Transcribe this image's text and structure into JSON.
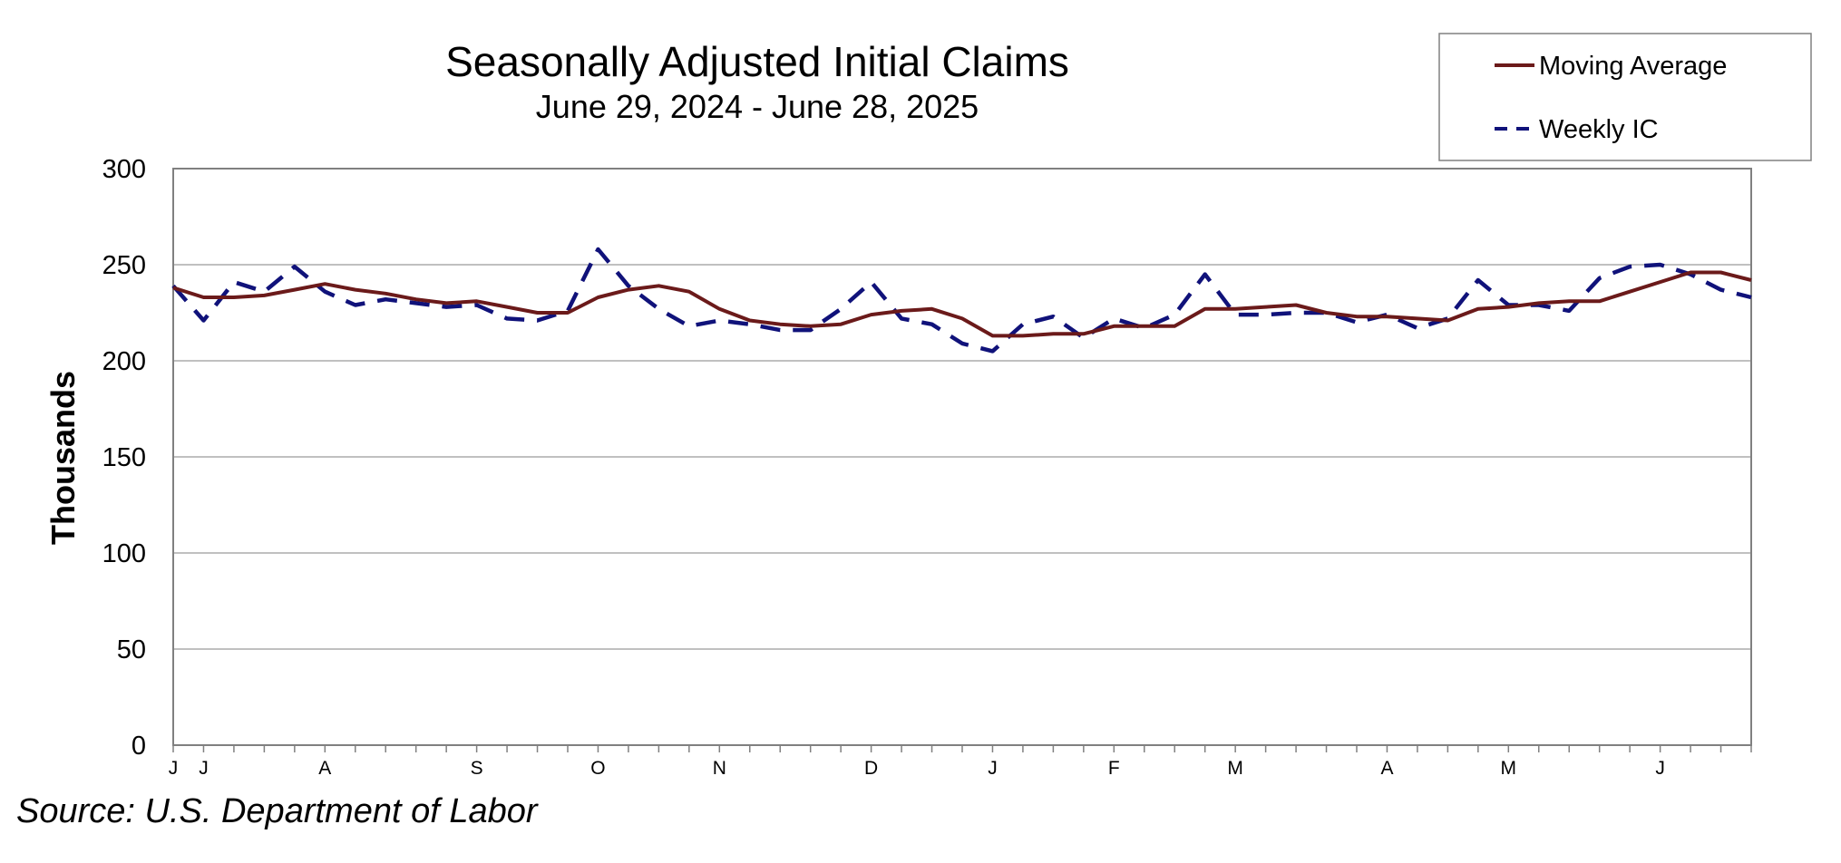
{
  "colors": {
    "moving_average": "#6B1A1A",
    "weekly_ic": "#10127A",
    "grid": "#C0C0C0",
    "axis": "#808080"
  },
  "source_text": "Source: U.S. Department of Labor",
  "chart_data": {
    "type": "line",
    "title": "Seasonally Adjusted Initial Claims",
    "subtitle": "June 29, 2024 - June 28, 2025",
    "ylabel": "Thousands",
    "xlabel": "",
    "ylim": [
      0,
      300
    ],
    "yticks": [
      0,
      50,
      100,
      150,
      200,
      250,
      300
    ],
    "grid": true,
    "legend_position": "top-right",
    "x_tick_labels": [
      "J",
      "J",
      "A",
      "S",
      "O",
      "N",
      "D",
      "J",
      "F",
      "M",
      "A",
      "M",
      "J"
    ],
    "x_tick_weeks": [
      0,
      1,
      5,
      10,
      14,
      18,
      23,
      27,
      31,
      35,
      40,
      44,
      49
    ],
    "week_count": 53,
    "series": [
      {
        "name": "Moving Average",
        "style": "solid",
        "values": [
          238,
          233,
          233,
          234,
          237,
          240,
          237,
          235,
          232,
          230,
          231,
          228,
          225,
          225,
          233,
          237,
          239,
          236,
          227,
          221,
          219,
          218,
          219,
          224,
          226,
          227,
          222,
          213,
          213,
          214,
          214,
          218,
          218,
          218,
          227,
          227,
          228,
          229,
          225,
          223,
          223,
          222,
          221,
          227,
          228,
          230,
          231,
          231,
          236,
          241,
          246,
          246,
          242
        ]
      },
      {
        "name": "Weekly IC",
        "style": "dashed",
        "values": [
          239,
          221,
          241,
          236,
          249,
          236,
          229,
          232,
          230,
          228,
          229,
          222,
          221,
          226,
          258,
          239,
          227,
          218,
          221,
          219,
          216,
          216,
          227,
          241,
          222,
          219,
          209,
          205,
          219,
          223,
          212,
          222,
          217,
          224,
          245,
          224,
          224,
          225,
          225,
          220,
          224,
          217,
          222,
          242,
          229,
          229,
          226,
          243,
          249,
          250,
          245,
          237,
          233
        ]
      }
    ]
  }
}
